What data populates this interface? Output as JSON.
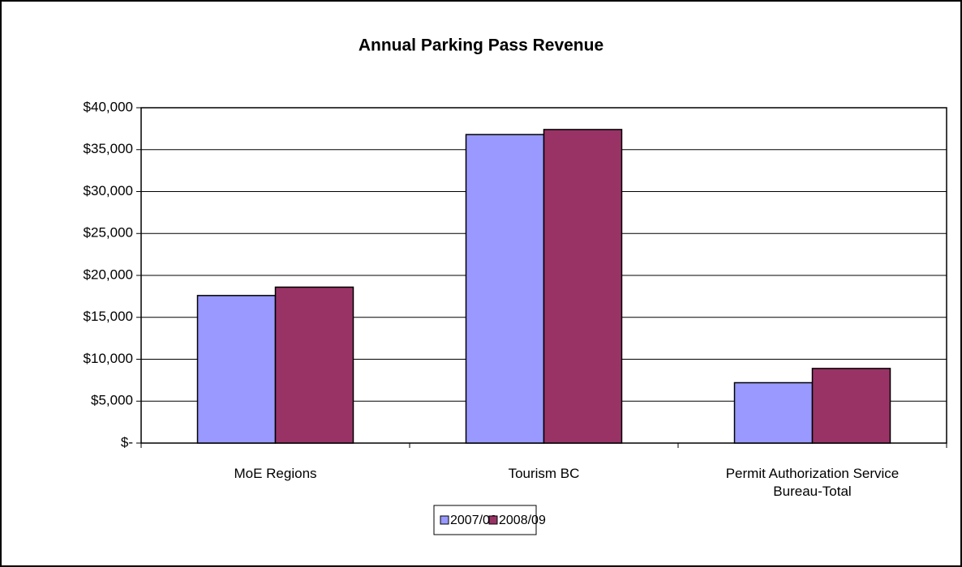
{
  "chart_data": {
    "type": "bar",
    "title": "Annual Parking Pass Revenue",
    "categories": [
      "MoE Regions",
      "Tourism BC",
      "Permit Authorization Service Bureau-Total"
    ],
    "series": [
      {
        "name": "2007/08",
        "color": "#9999ff",
        "values": [
          17600,
          36800,
          7200
        ]
      },
      {
        "name": "2008/09",
        "color": "#993366",
        "values": [
          18600,
          37400,
          8900
        ]
      }
    ],
    "ylim": [
      0,
      40000
    ],
    "yticks": [
      {
        "value": 0,
        "label": "$-"
      },
      {
        "value": 5000,
        "label": "$5,000"
      },
      {
        "value": 10000,
        "label": "$10,000"
      },
      {
        "value": 15000,
        "label": "$15,000"
      },
      {
        "value": 20000,
        "label": "$20,000"
      },
      {
        "value": 25000,
        "label": "$25,000"
      },
      {
        "value": 30000,
        "label": "$30,000"
      },
      {
        "value": 35000,
        "label": "$35,000"
      },
      {
        "value": 40000,
        "label": "$40,000"
      }
    ],
    "grid": true,
    "legend": "bottom"
  }
}
